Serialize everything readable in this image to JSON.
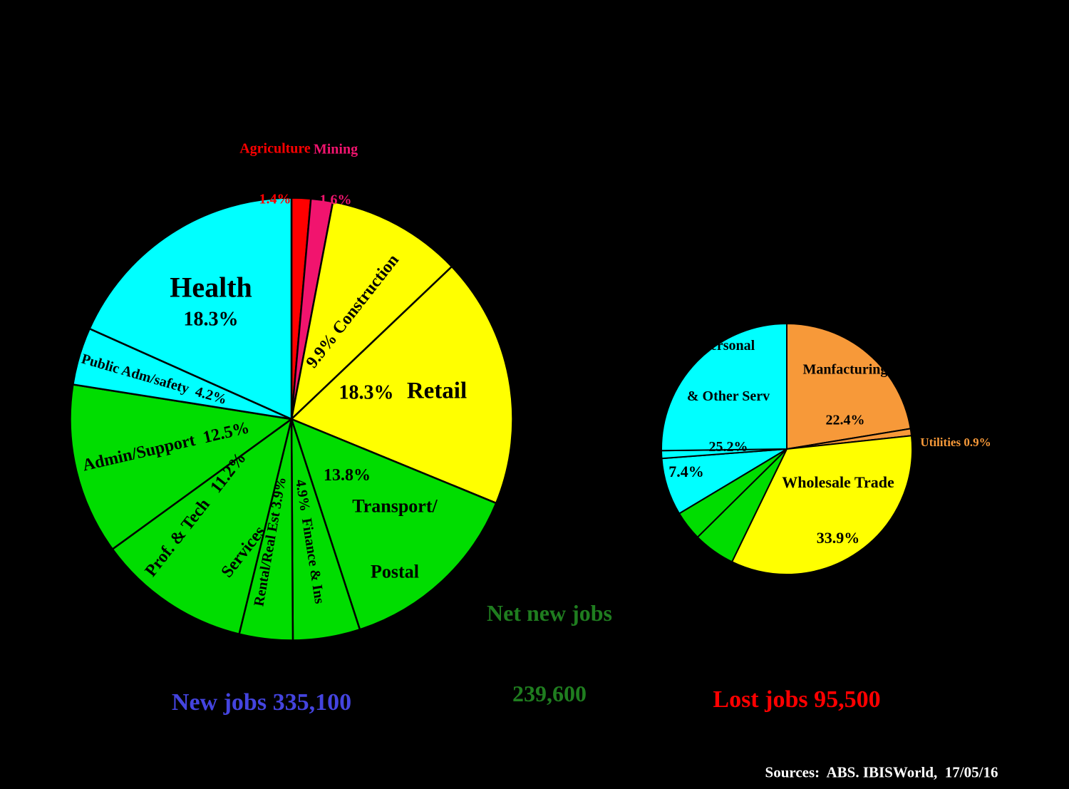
{
  "background": "#000000",
  "text_colors": {
    "red": "#FF0000",
    "pink": "#F1146E",
    "orange": "#F79939",
    "dark_green": "#1F7D1F",
    "blue": "#4444DF",
    "white": "#FFFFFF",
    "black": "#000000"
  },
  "chart_data": [
    {
      "type": "pie",
      "name": "new-jobs-pie",
      "caption": "New jobs 335,100",
      "direction": "clockwise",
      "start_angle_deg_from_top": 0,
      "slices": [
        {
          "label": "Agriculture",
          "pct": 1.4,
          "color": "#FF0000"
        },
        {
          "label": "Mining",
          "pct": 1.6,
          "color": "#F1146E"
        },
        {
          "label": "Construction",
          "pct": 9.9,
          "color": "#FFFF00"
        },
        {
          "label": "Retail",
          "pct": 18.3,
          "color": "#FFFF00"
        },
        {
          "label": "Transport/Postal",
          "pct": 13.8,
          "color": "#00DD00"
        },
        {
          "label": "Finance & Ins",
          "pct": 4.9,
          "color": "#00DD00"
        },
        {
          "label": "Rental/Real Est",
          "pct": 3.9,
          "color": "#00DD00"
        },
        {
          "label": "Prof. & Tech Services",
          "pct": 11.2,
          "color": "#00DD00"
        },
        {
          "label": "Admin/Support",
          "pct": 12.5,
          "color": "#00DD00"
        },
        {
          "label": "Public Adm/safety",
          "pct": 4.2,
          "color": "#00FFFF"
        },
        {
          "label": "Health",
          "pct": 18.3,
          "color": "#00FFFF"
        }
      ]
    },
    {
      "type": "pie",
      "name": "lost-jobs-pie",
      "caption": "Lost jobs 95,500",
      "direction": "clockwise",
      "start_angle_deg_from_top": 0,
      "slices": [
        {
          "label": "Manfacturing",
          "pct": 22.4,
          "color": "#F79939"
        },
        {
          "label": "Utilities",
          "pct": 0.9,
          "color": "#F79939"
        },
        {
          "label": "Wholesale Trade",
          "pct": 33.9,
          "color": "#FFFF00"
        },
        {
          "label": "",
          "pct": 5.4,
          "color": "#00DD00",
          "estimated": true
        },
        {
          "label": "",
          "pct": 3.8,
          "color": "#00DD00",
          "estimated": true
        },
        {
          "label": "",
          "pct": 7.4,
          "color": "#00FFFF"
        },
        {
          "label": "",
          "pct": 1.0,
          "color": "#00FFFF",
          "estimated": true
        },
        {
          "label": "Personal & Other Serv",
          "pct": 25.2,
          "color": "#00FFFF"
        }
      ]
    }
  ],
  "annotations": {
    "agriculture_name": "Agriculture",
    "agriculture_pct": "1.4%",
    "mining_name": "Mining",
    "mining_pct": "1.6%",
    "health_name": "Health",
    "health_pct": "18.3%",
    "public_adm": "Public Adm/safety  4.2%",
    "admin_support": "Admin/Support  12.5%",
    "prof_line1": "Prof. & Tech   11.2%",
    "prof_line2": "Services",
    "rental": "Rental/Real Est 3.9%",
    "finance": "4.9%  Finance & Ins",
    "transport_pct": "13.8%",
    "transport_line1": "Transport/",
    "transport_line2": "Postal",
    "retail_pct": "18.3%",
    "retail_name": "Retail",
    "construction": "9.9% Construction",
    "personal_line1": "Personal",
    "personal_line2": "& Other Serv",
    "personal_pct": "25.2%",
    "manfacturing_name": "Manfacturing",
    "manfacturing_pct": "22.4%",
    "utilities": "Utilities 0.9%",
    "lost_pct_74": "7.4%",
    "wholesale_name": "Wholesale Trade",
    "wholesale_pct": "33.9%",
    "net_line1": "Net new jobs",
    "net_line2": "239,600",
    "caption_new_jobs": "New jobs 335,100",
    "caption_lost_jobs": "Lost jobs 95,500",
    "sources": "Sources:  ABS. IBISWorld,  17/05/16"
  }
}
